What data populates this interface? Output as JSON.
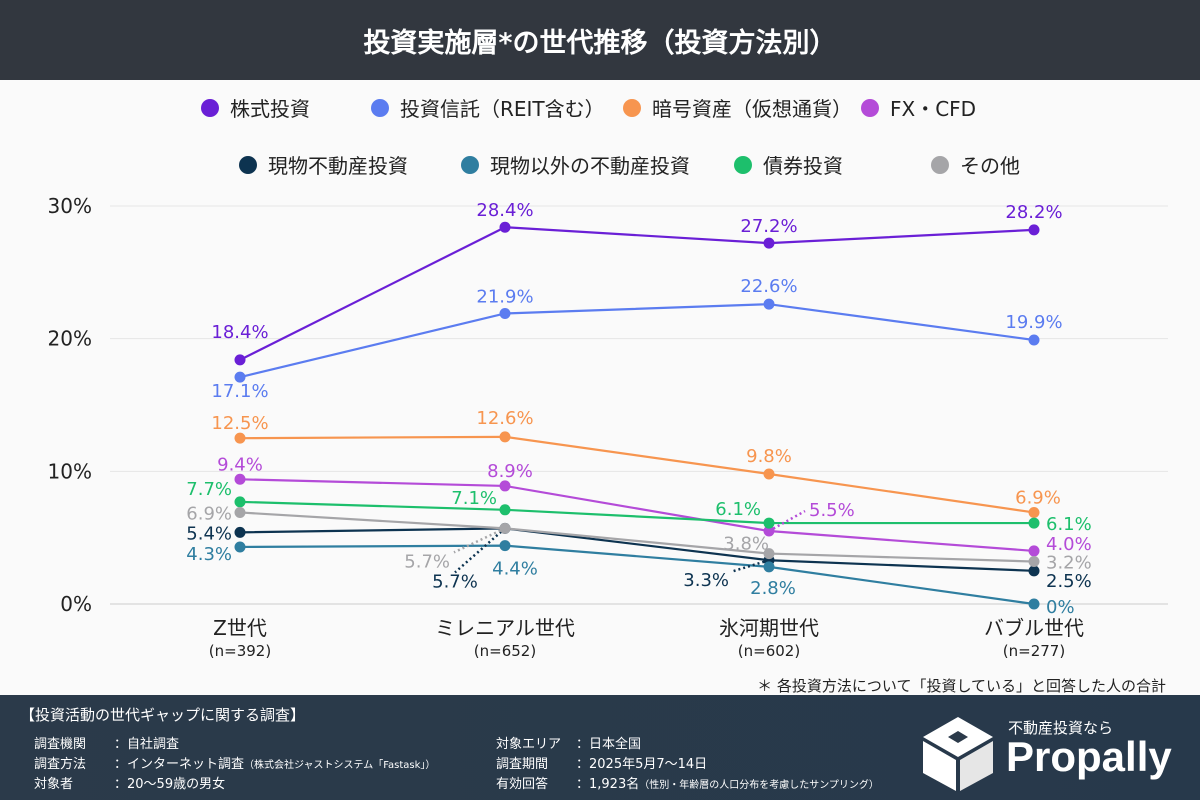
{
  "title": "投資実施層*の世代推移（投資方法別）",
  "note": "＊ 各投資方法について「投資している」と回答した人の合計",
  "chart_data": {
    "type": "line",
    "categories": [
      "Z世代",
      "ミレニアル世代",
      "氷河期世代",
      "バブル世代"
    ],
    "category_sub": [
      "(n=392)",
      "(n=652)",
      "(n=602)",
      "(n=277)"
    ],
    "yticks": [
      "0%",
      "10%",
      "20%",
      "30%"
    ],
    "ylim": [
      0,
      30
    ],
    "grid": true,
    "legend_placement": "top",
    "series": [
      {
        "name": "株式投資",
        "color": "#6a1fd6",
        "values": [
          18.4,
          28.4,
          27.2,
          28.2
        ],
        "labels": [
          "18.4%",
          "28.4%",
          "27.2%",
          "28.2%"
        ]
      },
      {
        "name": "投資信託（REIT含む）",
        "color": "#5b7cf0",
        "values": [
          17.1,
          21.9,
          22.6,
          19.9
        ],
        "labels": [
          "17.1%",
          "21.9%",
          "22.6%",
          "19.9%"
        ]
      },
      {
        "name": "暗号資産（仮想通貨）",
        "color": "#f7954f",
        "values": [
          12.5,
          12.6,
          9.8,
          6.9
        ],
        "labels": [
          "12.5%",
          "12.6%",
          "9.8%",
          "6.9%"
        ]
      },
      {
        "name": "FX・CFD",
        "color": "#b44bd8",
        "values": [
          9.4,
          8.9,
          5.5,
          4.0
        ],
        "labels": [
          "9.4%",
          "8.9%",
          "5.5%",
          "4.0%"
        ]
      },
      {
        "name": "現物不動産投資",
        "color": "#0d3350",
        "values": [
          5.4,
          5.7,
          3.3,
          2.5
        ],
        "labels": [
          "5.4%",
          "5.7%",
          "3.3%",
          "2.5%"
        ]
      },
      {
        "name": "現物以外の不動産投資",
        "color": "#2f7ea0",
        "values": [
          4.3,
          4.4,
          2.8,
          0
        ],
        "labels": [
          "4.3%",
          "4.4%",
          "2.8%",
          "0%"
        ]
      },
      {
        "name": "債券投資",
        "color": "#1dbf6c",
        "values": [
          7.7,
          7.1,
          6.1,
          6.1
        ],
        "labels": [
          "7.7%",
          "7.1%",
          "6.1%",
          "6.1%"
        ]
      },
      {
        "name": "その他",
        "color": "#a5a5a8",
        "values": [
          6.9,
          5.7,
          3.8,
          3.2
        ],
        "labels": [
          "6.9%",
          "5.7%",
          "3.8%",
          "3.2%"
        ]
      }
    ]
  },
  "footer": {
    "title": "【投資活動の世代ギャップに関する調査】",
    "rows": [
      {
        "k": "調査機関",
        "v": "：自社調査",
        "s": ""
      },
      {
        "k": "調査方法",
        "v": "：インターネット調査",
        "s": "（株式会社ジャストシステム「Fastask」）"
      },
      {
        "k": "対象者",
        "v": "：20～59歳の男女",
        "s": ""
      },
      {
        "k": "対象エリア",
        "v": "：日本全国",
        "s": ""
      },
      {
        "k": "調査期間",
        "v": "：2025年5月7～14日",
        "s": ""
      },
      {
        "k": "有効回答",
        "v": "：1,923名",
        "s": "（性別・年齢層の人口分布を考慮したサンプリング）"
      }
    ],
    "logo_tagline": "不動産投資なら",
    "logo_brand": "Propally"
  }
}
